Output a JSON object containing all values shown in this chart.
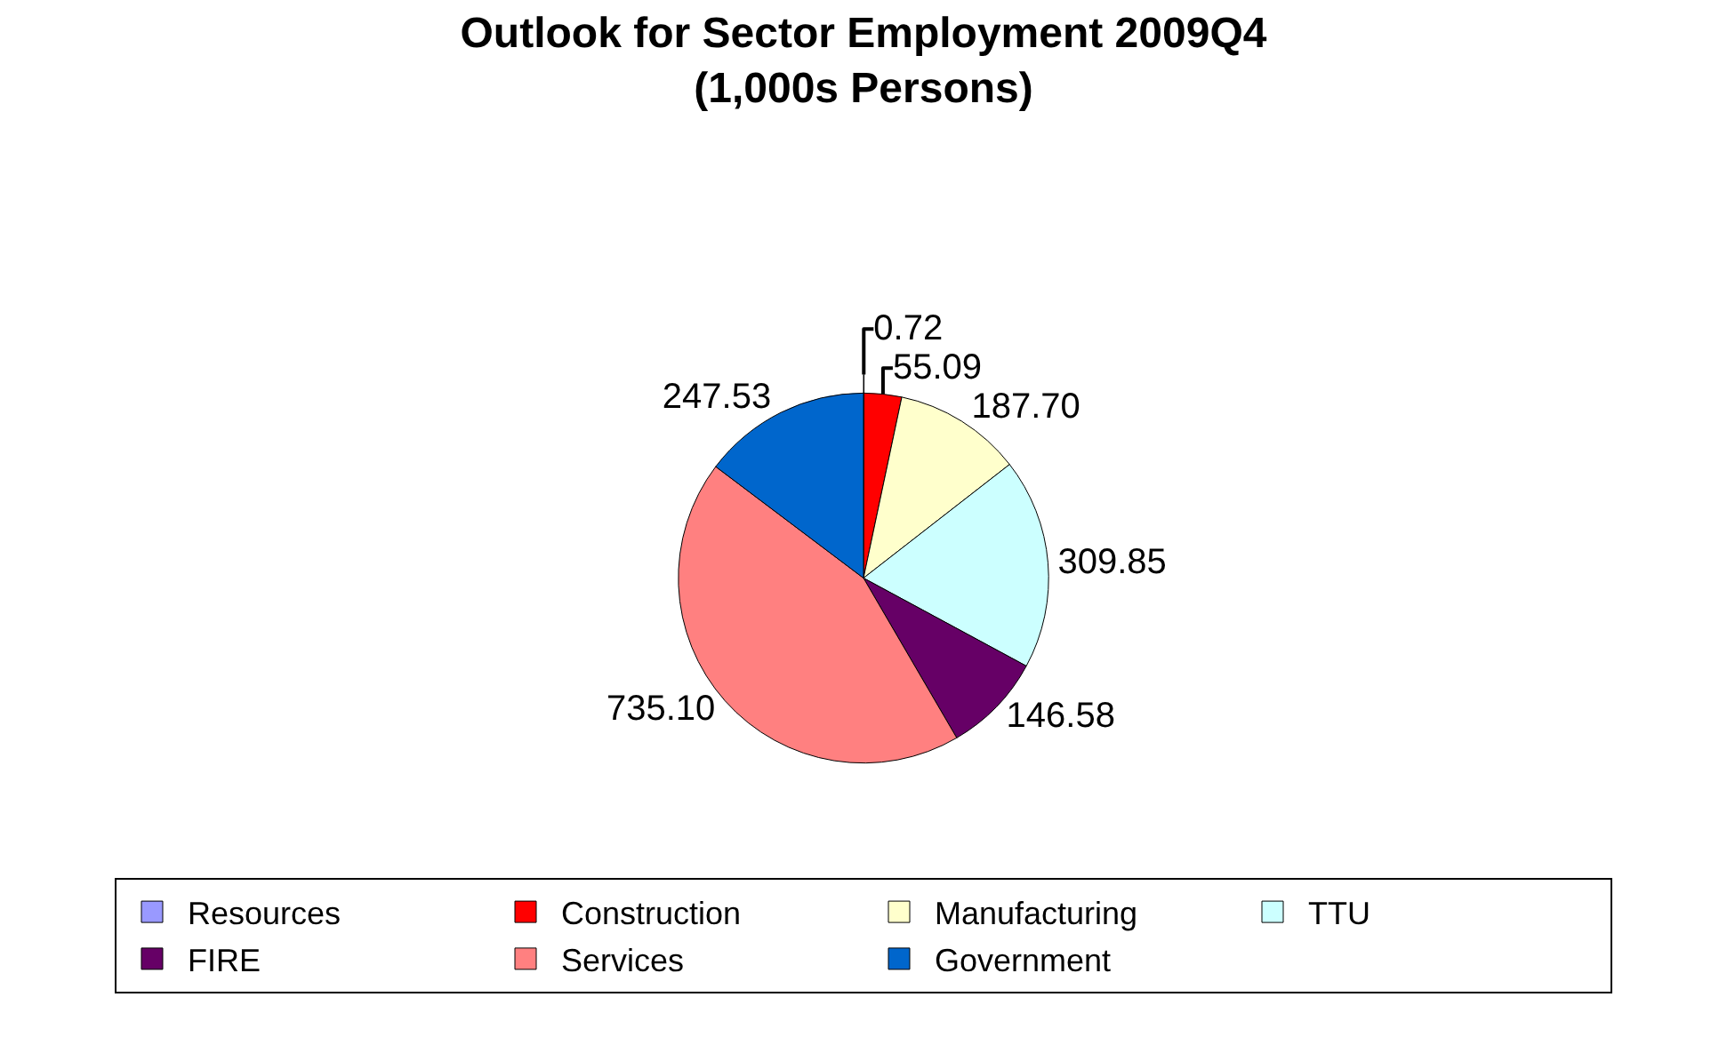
{
  "chart_data": {
    "type": "pie",
    "title": "Outlook for Sector Employment 2009Q4\n(1,000s Persons)",
    "categories": [
      "Resources",
      "Construction",
      "Manufacturing",
      "TTU",
      "FIRE",
      "Services",
      "Government"
    ],
    "values": [
      0.72,
      55.09,
      187.7,
      309.85,
      146.58,
      735.1,
      247.53
    ],
    "value_labels": [
      "0.72",
      "55.09",
      "187.70",
      "309.85",
      "146.58",
      "735.10",
      "247.53"
    ],
    "colors": [
      "#9999ff",
      "#ff0000",
      "#ffffcc",
      "#ccffff",
      "#660066",
      "#ff8080",
      "#0066cc"
    ],
    "legend": "bottom"
  }
}
